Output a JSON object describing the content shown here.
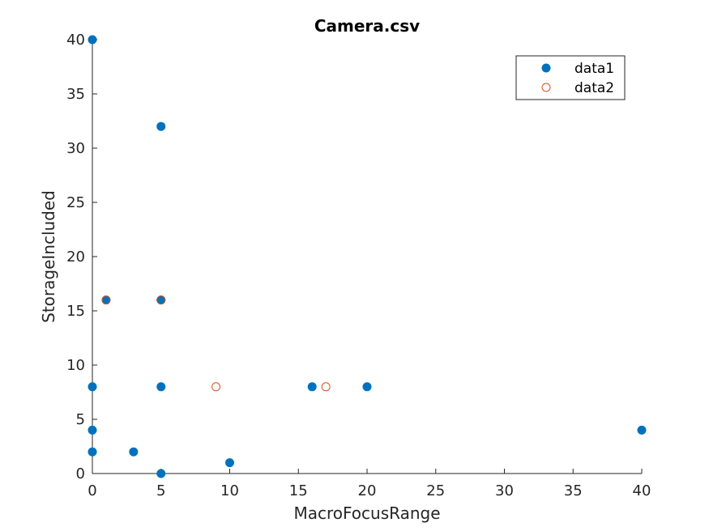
{
  "chart_data": {
    "type": "scatter",
    "title": "Camera.csv",
    "xlabel": "MacroFocusRange",
    "ylabel": "StorageIncluded",
    "xlim": [
      0,
      40
    ],
    "ylim": [
      0,
      40
    ],
    "xticks": [
      0,
      5,
      10,
      15,
      20,
      25,
      30,
      35,
      40
    ],
    "yticks": [
      0,
      5,
      10,
      15,
      20,
      25,
      30,
      35,
      40
    ],
    "grid": false,
    "legend_position": "top-right",
    "series": [
      {
        "name": "data1",
        "marker": "filled-circle",
        "color": "#0072BD",
        "x": [
          0,
          5,
          5,
          1,
          5,
          0,
          5,
          16,
          20,
          0,
          0,
          3,
          5,
          10,
          40
        ],
        "y": [
          40,
          32,
          16,
          16,
          16,
          8,
          8,
          8,
          8,
          4,
          2,
          2,
          0,
          1,
          4
        ]
      },
      {
        "name": "data2",
        "marker": "open-circle",
        "color": "#D95319",
        "x": [
          1,
          5,
          9,
          17
        ],
        "y": [
          16,
          16,
          8,
          8
        ]
      }
    ]
  }
}
